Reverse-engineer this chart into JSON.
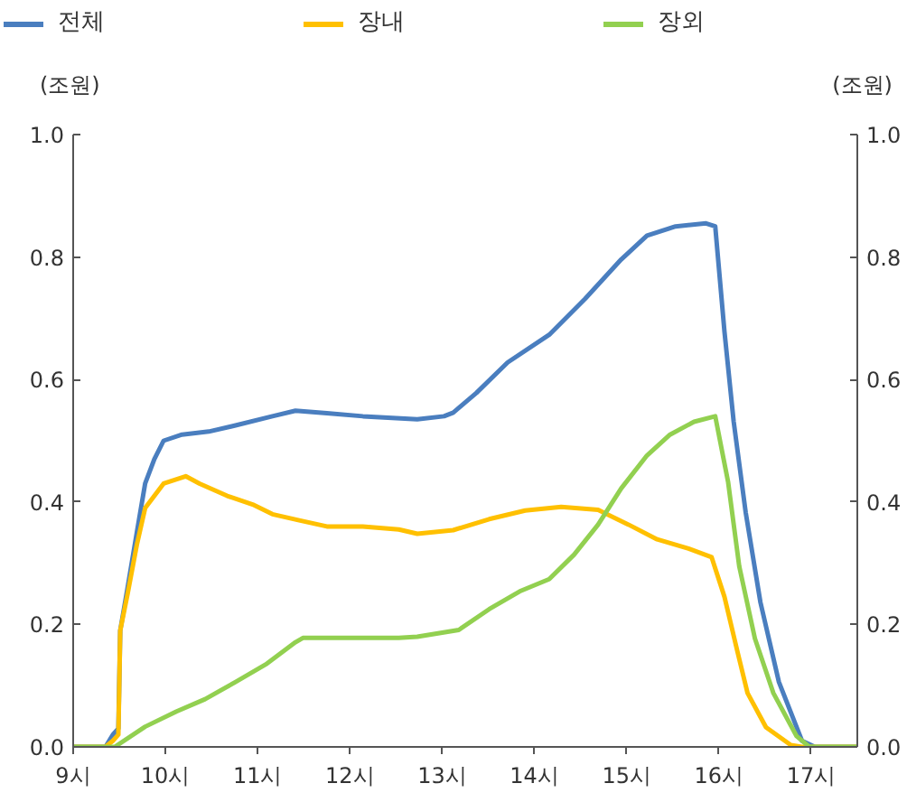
{
  "chart_data": {
    "type": "line",
    "ylabel": "(조원)",
    "y2label": "(조원)",
    "xlim": [
      9,
      17.5
    ],
    "ylim": [
      0,
      1
    ],
    "y2lim": [
      0,
      1
    ],
    "xticks": [
      {
        "value": 9,
        "label": "9시"
      },
      {
        "value": 10,
        "label": "10시"
      },
      {
        "value": 11,
        "label": "11시"
      },
      {
        "value": 12,
        "label": "12시"
      },
      {
        "value": 13,
        "label": "13시"
      },
      {
        "value": 14,
        "label": "14시"
      },
      {
        "value": 15,
        "label": "15시"
      },
      {
        "value": 16,
        "label": "16시"
      },
      {
        "value": 17,
        "label": "17시"
      }
    ],
    "yticks": [
      {
        "value": 0,
        "label": "0.0"
      },
      {
        "value": 0.2,
        "label": "0.2"
      },
      {
        "value": 0.4,
        "label": "0.4"
      },
      {
        "value": 0.6,
        "label": "0.6"
      },
      {
        "value": 0.8,
        "label": "0.8"
      },
      {
        "value": 1,
        "label": "1.0"
      }
    ],
    "y2ticks": [
      {
        "value": 0,
        "label": "0.0"
      },
      {
        "value": 0.2,
        "label": "0.2"
      },
      {
        "value": 0.4,
        "label": "0.4"
      },
      {
        "value": 0.6,
        "label": "0.6"
      },
      {
        "value": 0.8,
        "label": "0.8"
      },
      {
        "value": 1,
        "label": "1.0"
      }
    ],
    "grid": false,
    "legend": "top",
    "marker": "none",
    "line_style": "solid",
    "series": [
      {
        "name": "전체",
        "color": "#4a7ebf",
        "x": [
          9,
          9.35,
          9.43,
          9.49,
          9.51,
          9.59,
          9.69,
          9.78,
          9.88,
          9.98,
          10.18,
          10.47,
          10.76,
          11.16,
          11.41,
          11.75,
          12.14,
          12.73,
          13.02,
          13.12,
          13.37,
          13.71,
          14.16,
          14.55,
          14.94,
          15.22,
          15.53,
          15.86,
          15.96,
          16.06,
          16.16,
          16.29,
          16.45,
          16.65,
          16.9,
          17.04,
          17.5
        ],
        "values": [
          0,
          0,
          0.02,
          0.03,
          0.19,
          0.26,
          0.35,
          0.43,
          0.47,
          0.5,
          0.51,
          0.515,
          0.525,
          0.54,
          0.549,
          0.545,
          0.54,
          0.535,
          0.54,
          0.546,
          0.578,
          0.628,
          0.673,
          0.732,
          0.796,
          0.835,
          0.85,
          0.855,
          0.85,
          0.678,
          0.531,
          0.383,
          0.236,
          0.106,
          0.01,
          0,
          0
        ]
      },
      {
        "name": "장내",
        "color": "#ffc000",
        "x": [
          9,
          9.35,
          9.43,
          9.49,
          9.51,
          9.59,
          9.69,
          9.78,
          9.88,
          9.98,
          10.22,
          10.37,
          10.67,
          10.96,
          11.16,
          11.45,
          11.75,
          12.14,
          12.53,
          12.73,
          13.12,
          13.51,
          13.9,
          14.29,
          14.69,
          15.02,
          15.33,
          15.67,
          15.92,
          16.06,
          16.2,
          16.31,
          16.51,
          16.78,
          16.9,
          17.5
        ],
        "values": [
          0,
          0,
          0.01,
          0.02,
          0.19,
          0.25,
          0.33,
          0.39,
          0.41,
          0.43,
          0.442,
          0.43,
          0.41,
          0.395,
          0.38,
          0.37,
          0.36,
          0.36,
          0.355,
          0.348,
          0.354,
          0.372,
          0.386,
          0.392,
          0.387,
          0.363,
          0.339,
          0.324,
          0.31,
          0.245,
          0.156,
          0.088,
          0.032,
          0.003,
          0,
          0
        ]
      },
      {
        "name": "장외",
        "color": "#92d050",
        "x": [
          9,
          9.35,
          9.45,
          9.78,
          10.12,
          10.43,
          10.76,
          11.1,
          11.41,
          11.49,
          12.53,
          12.73,
          13.18,
          13.51,
          13.84,
          14.16,
          14.43,
          14.69,
          14.94,
          15.22,
          15.47,
          15.73,
          15.96,
          16.1,
          16.22,
          16.39,
          16.59,
          16.84,
          16.98,
          17.5
        ],
        "values": [
          0,
          0,
          0,
          0.033,
          0.058,
          0.078,
          0.106,
          0.136,
          0.171,
          0.178,
          0.178,
          0.18,
          0.191,
          0.225,
          0.254,
          0.274,
          0.314,
          0.363,
          0.422,
          0.476,
          0.51,
          0.531,
          0.54,
          0.432,
          0.295,
          0.177,
          0.088,
          0.018,
          0,
          0
        ]
      }
    ]
  }
}
